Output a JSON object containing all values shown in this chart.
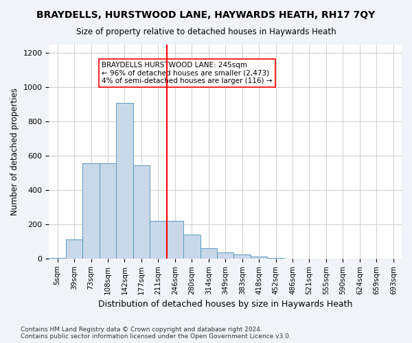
{
  "title": "BRAYDELLS, HURSTWOOD LANE, HAYWARDS HEATH, RH17 7QY",
  "subtitle": "Size of property relative to detached houses in Haywards Heath",
  "xlabel": "Distribution of detached houses by size in Haywards Heath",
  "ylabel": "Number of detached properties",
  "bin_labels": [
    "5sqm",
    "39sqm",
    "73sqm",
    "108sqm",
    "142sqm",
    "177sqm",
    "211sqm",
    "246sqm",
    "280sqm",
    "314sqm",
    "349sqm",
    "383sqm",
    "418sqm",
    "452sqm",
    "486sqm",
    "521sqm",
    "555sqm",
    "590sqm",
    "624sqm",
    "659sqm",
    "693sqm"
  ],
  "bar_values": [
    5,
    110,
    555,
    555,
    910,
    545,
    220,
    220,
    140,
    60,
    35,
    25,
    10,
    2,
    1,
    0,
    0,
    0,
    0,
    0,
    0
  ],
  "bar_color": "#c8d8e8",
  "bar_edge_color": "#5a9abf",
  "vline_x_index": 7,
  "vline_color": "red",
  "annotation_text": "BRAYDELLS HURSTWOOD LANE: 245sqm\n← 96% of detached houses are smaller (2,473)\n4% of semi-detached houses are larger (116) →",
  "annotation_box_color": "white",
  "annotation_box_edge": "red",
  "ylim": [
    0,
    1250
  ],
  "yticks": [
    0,
    200,
    400,
    600,
    800,
    1000,
    1200
  ],
  "footer": "Contains HM Land Registry data © Crown copyright and database right 2024.\nContains public sector information licensed under the Open Government Licence v3.0.",
  "bg_color": "#f0f4f8",
  "plot_bg_color": "#ffffff"
}
